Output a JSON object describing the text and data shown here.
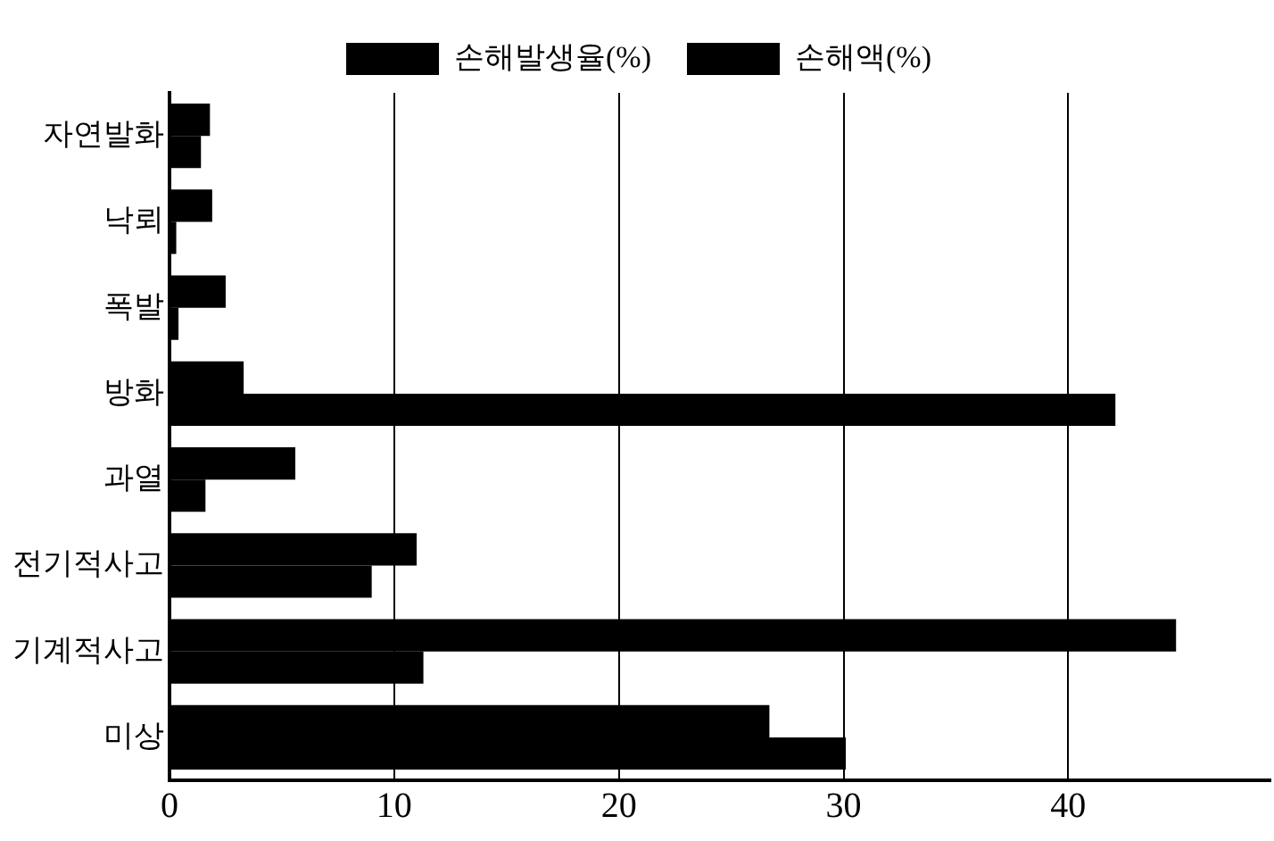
{
  "chart_data": {
    "type": "bar",
    "orientation": "horizontal",
    "categories": [
      "자연발화",
      "낙뢰",
      "폭발",
      "방화",
      "과열",
      "전기적사고",
      "기계적사고",
      "미상"
    ],
    "series": [
      {
        "name": "손해발생율(%)",
        "color": "#000000",
        "values": [
          1.8,
          1.9,
          2.5,
          3.3,
          5.6,
          11.0,
          44.8,
          26.7
        ]
      },
      {
        "name": "손해액(%)",
        "color": "#000000",
        "values": [
          1.4,
          0.3,
          0.4,
          42.1,
          1.6,
          9.0,
          11.3,
          30.1
        ]
      }
    ],
    "xlim": [
      0,
      49
    ],
    "xticks": [
      0,
      10,
      20,
      30,
      40
    ],
    "grid": "x",
    "legend": "top"
  }
}
